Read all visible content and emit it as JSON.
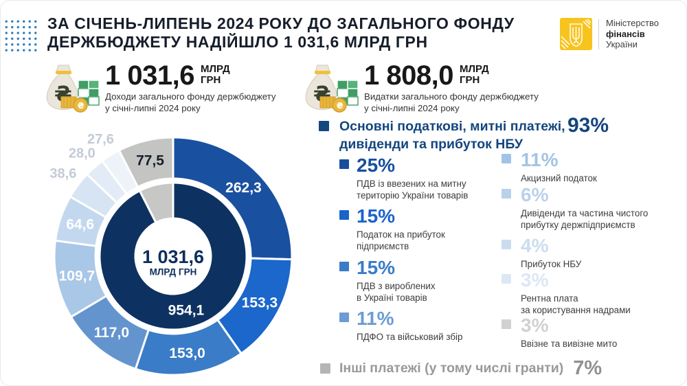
{
  "header": {
    "title": "ЗА СІЧЕНЬ-ЛИПЕНЬ 2024 РОКУ ДО ЗАГАЛЬНОГО ФОНДУ\nДЕРЖБЮДЖЕТУ НАДІЙШЛО 1 031,6 МЛРД ГРН"
  },
  "logo": {
    "line1": "Міністерство",
    "line2": "фінансів",
    "line3": "України",
    "box_color": "#f6c41d"
  },
  "stats": {
    "revenue": {
      "value": "1 031,6",
      "unit": "МЛРД\nГРН",
      "desc": "Доходи загального фонду держбюджету\nу січні-липні 2024 року"
    },
    "expense": {
      "value": "1 808,0",
      "unit": "МЛРД\nГРН",
      "desc": "Видатки загального фонду держбюджету\nу січні-липні 2024 року"
    }
  },
  "breakdown": {
    "section": {
      "label": "Основні податкові, митні платежі,\nдивіденди та прибуток НБУ",
      "pct": "93%",
      "color": "#14467f"
    },
    "left_items": [
      {
        "pct": "25%",
        "color": "#174f9e",
        "desc": "ПДВ із ввезених на митну\nтериторію України товарів"
      },
      {
        "pct": "15%",
        "color": "#1a63c8",
        "desc": "Податок на прибуток\nпідприємств"
      },
      {
        "pct": "15%",
        "color": "#3a7cc7",
        "desc": "ПДВ з вироблених\nв Україні товарів"
      },
      {
        "pct": "11%",
        "color": "#6b9cd4",
        "desc": "ПДФО та військовий збір"
      }
    ],
    "right_items": [
      {
        "pct": "11%",
        "color": "#a3c3e6",
        "desc": "Акцизний податок"
      },
      {
        "pct": "6%",
        "color": "#b9d1eb",
        "desc": "Дивіденди та частина чистого\nприбутку держпідприємств"
      },
      {
        "pct": "4%",
        "color": "#ccdcf0",
        "desc": "Прибуток НБУ"
      },
      {
        "pct": "3%",
        "color": "#dce7f4",
        "desc": "Рентна плата\nза користування надрами"
      },
      {
        "pct": "3%",
        "color": "#d0d2d2",
        "desc": "Ввізне та вивізне мито"
      }
    ],
    "other": {
      "label": "Інші платежі (у тому числі гранти)",
      "pct": "7%",
      "label_color": "#999999",
      "pct_color": "#8f9090",
      "bullet_color": "#b5b5b5"
    }
  },
  "chart_data": {
    "type": "donut",
    "units": "млрд грн",
    "center": {
      "value": "1 031,6",
      "unit": "МЛРД ГРН",
      "value_color": "#0d2e5c"
    },
    "outer_ring": {
      "r0": 113,
      "r1": 173,
      "label_r": 143,
      "out_label_r": 200,
      "label_fs": 21,
      "out_label_fs": 20,
      "segments": [
        {
          "label": "262,3",
          "value": 262.3,
          "color": "#1951a0",
          "label_pos": "ring",
          "label_color": "#ffffff"
        },
        {
          "label": "153,3",
          "value": 153.3,
          "color": "#1b67cb",
          "label_pos": "ring",
          "label_color": "#ffffff"
        },
        {
          "label": "153,0",
          "value": 153.0,
          "color": "#3a7cc7",
          "label_pos": "ring",
          "label_color": "#ffffff"
        },
        {
          "label": "117,0",
          "value": 117.0,
          "color": "#6394ce",
          "label_pos": "ring",
          "label_color": "#ffffff"
        },
        {
          "label": "109,7",
          "value": 109.7,
          "color": "#a9c7e7",
          "label_pos": "ring",
          "label_color": "#ffffff"
        },
        {
          "label": "64,6",
          "value": 64.6,
          "color": "#c3d8ee",
          "label_pos": "ring",
          "label_color": "#ffffff"
        },
        {
          "label": "38,6",
          "value": 38.6,
          "color": "#d7e4f3",
          "label_pos": "out",
          "label_color": "#c3cbd5"
        },
        {
          "label": "28,0",
          "value": 28.0,
          "color": "#e3ecf6",
          "label_pos": "out",
          "label_color": "#c3cbd5"
        },
        {
          "label": "27,6",
          "value": 27.6,
          "color": "#edf3f9",
          "label_pos": "out",
          "label_color": "#c3cbd5"
        },
        {
          "label": "77,5",
          "value": 77.5,
          "color": "#c4c5c3",
          "label_pos": "ring",
          "label_color": "#16202e"
        }
      ]
    },
    "inner_ring": {
      "r0": 55,
      "r1": 107,
      "label_r": 81,
      "label_fs": 21,
      "segments": [
        {
          "label": "954,1",
          "value": 954.1,
          "color": "#0d3261",
          "label_pos": "ring",
          "label_color": "#ffffff"
        },
        {
          "label": "",
          "value": 77.5,
          "color": "#c7c8c6",
          "label_pos": "none",
          "label_color": ""
        }
      ]
    }
  }
}
